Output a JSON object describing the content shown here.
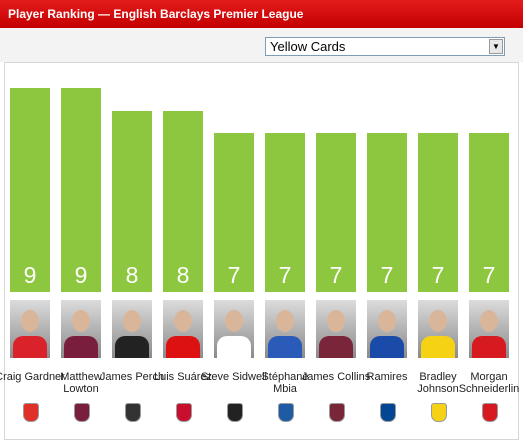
{
  "header": {
    "title": "Player Ranking — English Barclays Premier League"
  },
  "dropdown": {
    "selected": "Yellow Cards"
  },
  "chart_data": {
    "type": "bar",
    "categories": [
      "Craig Gardner",
      "Matthew Lowton",
      "James Perch",
      "Luis Suárez",
      "Steve Sidwell",
      "Stéphane Mbia",
      "James Collins",
      "Ramires",
      "Bradley Johnson",
      "Morgan Schneiderlin"
    ],
    "values": [
      9,
      9,
      8,
      8,
      7,
      7,
      7,
      7,
      7,
      7
    ],
    "color": "#8dc63f"
  }
}
